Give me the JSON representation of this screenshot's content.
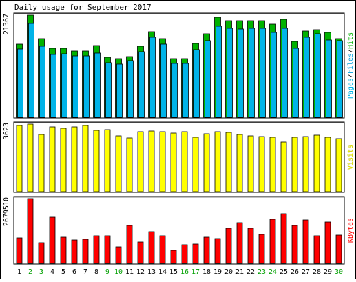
{
  "chart_data": [
    {
      "type": "bar",
      "title": "Daily usage for September 2017",
      "ylabel_max": "21367",
      "legend_right": [
        "Pages",
        "Files",
        "Hits"
      ],
      "ylim": [
        0,
        21367
      ],
      "colors": {
        "hits": "#00B200",
        "files": "#00A0E0",
        "pages": "#00B4E8"
      },
      "categories": [
        "1",
        "2",
        "3",
        "4",
        "5",
        "6",
        "7",
        "8",
        "9",
        "10",
        "11",
        "12",
        "13",
        "14",
        "15",
        "16",
        "17",
        "18",
        "19",
        "20",
        "21",
        "22",
        "23",
        "24",
        "25",
        "26",
        "27",
        "28",
        "29",
        "30"
      ],
      "weekend_days": [
        "2",
        "3",
        "9",
        "10",
        "16",
        "17",
        "23",
        "24",
        "30"
      ],
      "series": [
        {
          "name": "Hits",
          "values": [
            15300,
            21300,
            16400,
            14500,
            14400,
            13800,
            13800,
            15000,
            12500,
            12300,
            12700,
            14800,
            17900,
            16500,
            12300,
            12200,
            15400,
            17500,
            21000,
            20200,
            20200,
            20200,
            20200,
            19500,
            20500,
            15900,
            18100,
            18300,
            17700,
            16500
          ]
        },
        {
          "name": "Files",
          "values": [
            14300,
            19600,
            14800,
            13200,
            13300,
            12800,
            12800,
            13400,
            11400,
            11100,
            11800,
            13700,
            16800,
            15300,
            11200,
            11200,
            14200,
            16000,
            19100,
            18600,
            18500,
            18600,
            18600,
            17800,
            18600,
            14500,
            16700,
            17500,
            16100,
            16000
          ]
        }
      ]
    },
    {
      "type": "bar",
      "ylabel_max": "3623",
      "legend_right": [
        "Visits"
      ],
      "ylim": [
        0,
        3623
      ],
      "colors": {
        "visits": "#FFFF00"
      },
      "series": [
        {
          "name": "Visits",
          "values": [
            3550,
            3623,
            3050,
            3480,
            3410,
            3460,
            3540,
            3280,
            3330,
            2980,
            2880,
            3200,
            3260,
            3230,
            3160,
            3230,
            2930,
            3100,
            3230,
            3190,
            3050,
            2990,
            2970,
            2910,
            2650,
            2920,
            2960,
            3030,
            2910,
            2840
          ]
        }
      ]
    },
    {
      "type": "bar",
      "ylabel_max": "2679510",
      "legend_right": [
        "KBytes"
      ],
      "ylim": [
        0,
        2679510
      ],
      "colors": {
        "kbytes": "#FF0000"
      },
      "series": [
        {
          "name": "KBytes",
          "values": [
            1060000,
            2679510,
            850000,
            1900000,
            1090000,
            960000,
            1010000,
            1150000,
            1130000,
            690000,
            1580000,
            880000,
            1320000,
            1140000,
            550000,
            780000,
            790000,
            1080000,
            1040000,
            1440000,
            1690000,
            1460000,
            1190000,
            1820000,
            2040000,
            1580000,
            1800000,
            1150000,
            1700000,
            1170000
          ]
        }
      ]
    }
  ]
}
